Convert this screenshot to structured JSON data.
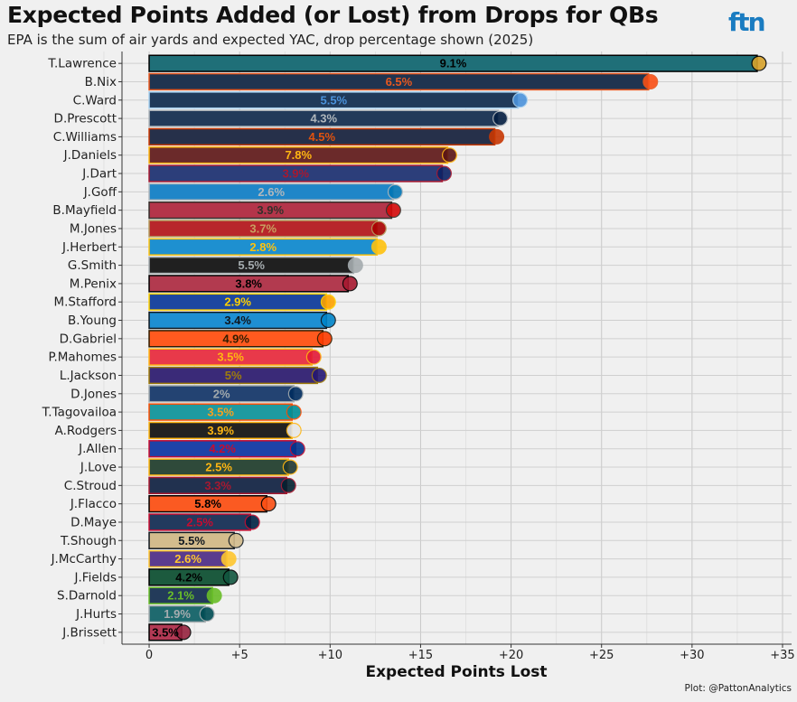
{
  "logo_text": "ftn",
  "caption": "Plot: @PattonAnalytics",
  "chart_data": {
    "type": "bar",
    "orientation": "horizontal",
    "title": "Expected Points Added (or Lost) from Drops for QBs",
    "subtitle": "EPA is the sum of air yards and expected YAC, drop percentage shown (2025)",
    "xlabel": "Expected Points Lost",
    "xlim": [
      -1.5,
      35.5
    ],
    "xticks": [
      0,
      5,
      10,
      15,
      20,
      25,
      30,
      35
    ],
    "xtick_labels": [
      "0",
      "+5",
      "+10",
      "+15",
      "+20",
      "+25",
      "+30",
      "+35"
    ],
    "grid": true,
    "bars": [
      {
        "player": "T.Lawrence",
        "value": 33.6,
        "label": "9.1%",
        "fill": "#1f6f78",
        "border": "#000000",
        "label_color": "#000000",
        "accent": "#d7a22a"
      },
      {
        "player": "B.Nix",
        "value": 27.6,
        "label": "6.5%",
        "fill": "#1f3450",
        "border": "#e8581f",
        "label_color": "#e8581f",
        "accent": "#fb4f14"
      },
      {
        "player": "C.Ward",
        "value": 20.4,
        "label": "5.5%",
        "fill": "#203a5a",
        "border": "#a7d0ef",
        "label_color": "#4b92db",
        "accent": "#4b92db"
      },
      {
        "player": "D.Prescott",
        "value": 19.3,
        "label": "4.3%",
        "fill": "#223a5a",
        "border": "#b0b7bc",
        "label_color": "#b0b7bc",
        "accent": "#041e42"
      },
      {
        "player": "C.Williams",
        "value": 19.1,
        "label": "4.5%",
        "fill": "#26304a",
        "border": "#c83803",
        "label_color": "#e0520e",
        "accent": "#c83803"
      },
      {
        "player": "J.Daniels",
        "value": 16.5,
        "label": "7.8%",
        "fill": "#6b2a2a",
        "border": "#ffb612",
        "label_color": "#ffb612",
        "accent": "#5a1414"
      },
      {
        "player": "J.Dart",
        "value": 16.2,
        "label": "3.9%",
        "fill": "#2c3e7a",
        "border": "#a71930",
        "label_color": "#a71930",
        "accent": "#0b2265"
      },
      {
        "player": "J.Goff",
        "value": 13.5,
        "label": "2.6%",
        "fill": "#1f86c8",
        "border": "#b0b7bc",
        "label_color": "#b0b7bc",
        "accent": "#0076b6"
      },
      {
        "player": "B.Mayfield",
        "value": 13.4,
        "label": "3.9%",
        "fill": "#b4354a",
        "border": "#34302b",
        "label_color": "#34302b",
        "accent": "#d50a0a"
      },
      {
        "player": "M.Jones",
        "value": 12.6,
        "label": "3.7%",
        "fill": "#b8262b",
        "border": "#b3995d",
        "label_color": "#c8a060",
        "accent": "#aa0000"
      },
      {
        "player": "J.Herbert",
        "value": 12.6,
        "label": "2.8%",
        "fill": "#1e90d0",
        "border": "#ffc20e",
        "label_color": "#ffc20e",
        "accent": "#ffc20e"
      },
      {
        "player": "G.Smith",
        "value": 11.3,
        "label": "5.5%",
        "fill": "#202020",
        "border": "#a5acaf",
        "label_color": "#a5acaf",
        "accent": "#a5acaf"
      },
      {
        "player": "M.Penix",
        "value": 11.0,
        "label": "3.8%",
        "fill": "#b23a4f",
        "border": "#000000",
        "label_color": "#000000",
        "accent": "#a71930"
      },
      {
        "player": "M.Stafford",
        "value": 9.8,
        "label": "2.9%",
        "fill": "#1d47a0",
        "border": "#ffd100",
        "label_color": "#ffd100",
        "accent": "#ffa300"
      },
      {
        "player": "B.Young",
        "value": 9.8,
        "label": "3.4%",
        "fill": "#1e8fd2",
        "border": "#101820",
        "label_color": "#101820",
        "accent": "#0085ca"
      },
      {
        "player": "D.Gabriel",
        "value": 9.6,
        "label": "4.9%",
        "fill": "#ff5a1f",
        "border": "#311d00",
        "label_color": "#311d00",
        "accent": "#ff3c00"
      },
      {
        "player": "P.Mahomes",
        "value": 9.0,
        "label": "3.5%",
        "fill": "#e8394a",
        "border": "#ffb612",
        "label_color": "#ffb612",
        "accent": "#e31837"
      },
      {
        "player": "L.Jackson",
        "value": 9.3,
        "label": "5%",
        "fill": "#3a2a78",
        "border": "#9e7c0c",
        "label_color": "#9e7c0c",
        "accent": "#241773"
      },
      {
        "player": "D.Jones",
        "value": 8.0,
        "label": "2%",
        "fill": "#234372",
        "border": "#a2aaad",
        "label_color": "#a2aaad",
        "accent": "#002c5f"
      },
      {
        "player": "T.Tagovailoa",
        "value": 7.9,
        "label": "3.5%",
        "fill": "#1e9aa0",
        "border": "#fc4c02",
        "label_color": "#f5a020",
        "accent": "#008e97"
      },
      {
        "player": "A.Rodgers",
        "value": 7.9,
        "label": "3.9%",
        "fill": "#222222",
        "border": "#ffb612",
        "label_color": "#ffb612",
        "accent": "#e8e8e8"
      },
      {
        "player": "J.Allen",
        "value": 8.1,
        "label": "4.2%",
        "fill": "#1e43a8",
        "border": "#c60c30",
        "label_color": "#c60c30",
        "accent": "#00338d"
      },
      {
        "player": "J.Love",
        "value": 7.7,
        "label": "2.5%",
        "fill": "#2f4a3a",
        "border": "#ffb612",
        "label_color": "#ffb612",
        "accent": "#203731"
      },
      {
        "player": "C.Stroud",
        "value": 7.6,
        "label": "3.3%",
        "fill": "#21314f",
        "border": "#a71930",
        "label_color": "#a71930",
        "accent": "#03202f"
      },
      {
        "player": "J.Flacco",
        "value": 6.5,
        "label": "5.8%",
        "fill": "#fb5a22",
        "border": "#000000",
        "label_color": "#000000",
        "accent": "#fb4f14"
      },
      {
        "player": "D.Maye",
        "value": 5.6,
        "label": "2.5%",
        "fill": "#223a5e",
        "border": "#c60c30",
        "label_color": "#c60c30",
        "accent": "#002244"
      },
      {
        "player": "T.Shough",
        "value": 4.7,
        "label": "5.5%",
        "fill": "#d3bc8d",
        "border": "#101820",
        "label_color": "#101820",
        "accent": "#d3bc8d"
      },
      {
        "player": "J.McCarthy",
        "value": 4.3,
        "label": "2.6%",
        "fill": "#5b3c8e",
        "border": "#ffc62f",
        "label_color": "#ffc62f",
        "accent": "#ffc62f"
      },
      {
        "player": "J.Fields",
        "value": 4.4,
        "label": "4.2%",
        "fill": "#1c5a3e",
        "border": "#000000",
        "label_color": "#000000",
        "accent": "#125740"
      },
      {
        "player": "S.Darnold",
        "value": 3.5,
        "label": "2.1%",
        "fill": "#233b5a",
        "border": "#69be28",
        "label_color": "#69be28",
        "accent": "#69be28"
      },
      {
        "player": "J.Hurts",
        "value": 3.1,
        "label": "1.9%",
        "fill": "#1f6a6f",
        "border": "#a5acaf",
        "label_color": "#a5acaf",
        "accent": "#004c54"
      },
      {
        "player": "J.Brissett",
        "value": 1.8,
        "label": "3.5%",
        "fill": "#b33a55",
        "border": "#000000",
        "label_color": "#000000",
        "accent": "#97233f"
      }
    ]
  }
}
